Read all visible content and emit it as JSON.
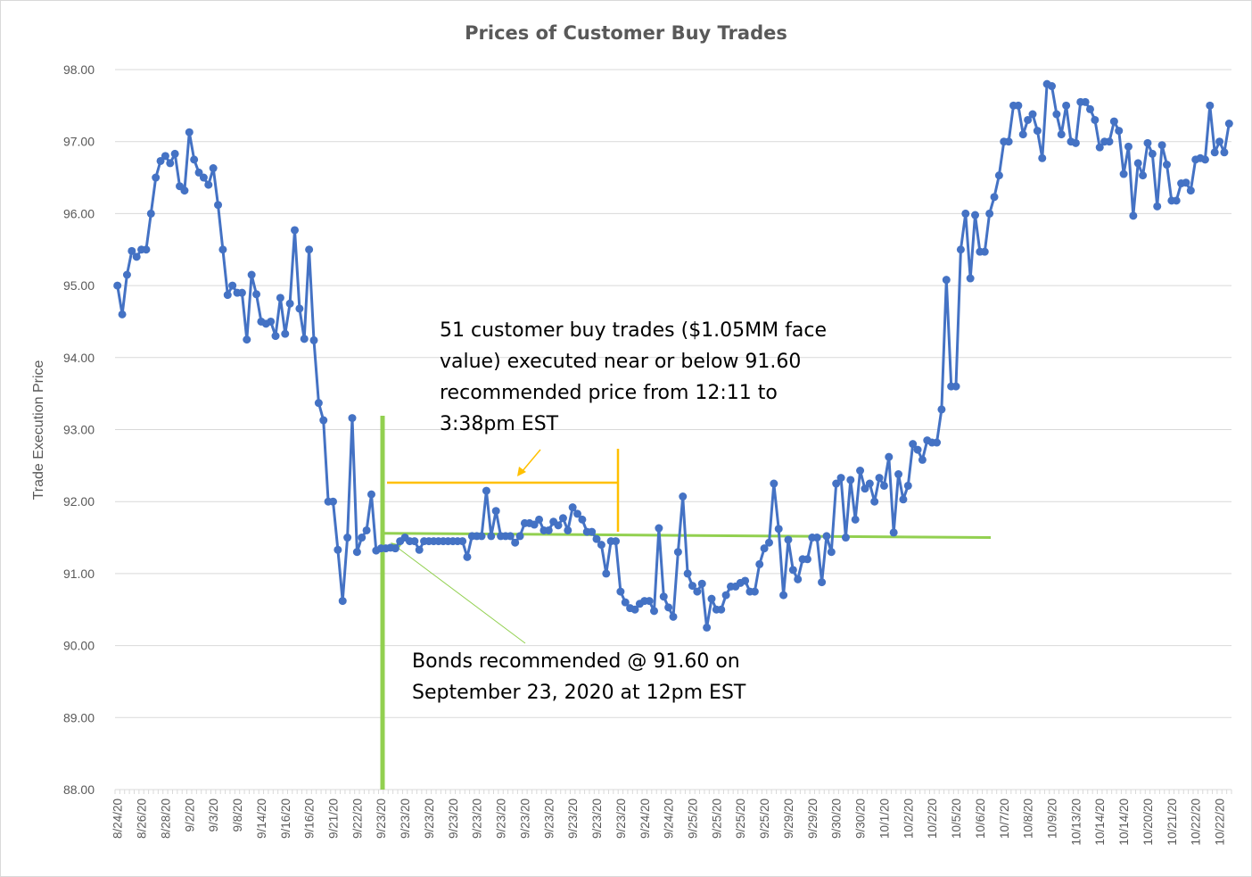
{
  "chart_data": {
    "type": "line",
    "title": "Prices of Customer Buy Trades",
    "xlabel": "",
    "ylabel": "Trade Execution Price",
    "ylim": [
      88,
      98
    ],
    "yticks": [
      "88.00",
      "89.00",
      "90.00",
      "91.00",
      "92.00",
      "93.00",
      "94.00",
      "95.00",
      "96.00",
      "97.00",
      "98.00"
    ],
    "grid": true,
    "legend": "none",
    "line_color": "#4472C4",
    "x_tick_every": 5,
    "x_tick_labels": [
      "8/24/20",
      "8/26/20",
      "8/28/20",
      "9/2/20",
      "9/3/20",
      "9/8/20",
      "9/14/20",
      "9/16/20",
      "9/16/20",
      "9/21/20",
      "9/22/20",
      "9/23/20",
      "9/23/20",
      "9/23/20",
      "9/23/20",
      "9/23/20",
      "9/23/20",
      "9/23/20",
      "9/23/20",
      "9/23/20",
      "9/23/20",
      "9/23/20",
      "9/24/20",
      "9/24/20",
      "9/25/20",
      "9/25/20",
      "9/25/20",
      "9/25/20",
      "9/29/20",
      "9/29/20",
      "9/30/20",
      "9/30/20",
      "10/1/20",
      "10/2/20",
      "10/2/20",
      "10/5/20",
      "10/6/20",
      "10/7/20",
      "10/8/20",
      "10/9/20",
      "10/13/20",
      "10/14/20",
      "10/14/20",
      "10/20/20",
      "10/21/20",
      "10/22/20",
      "10/22/20"
    ],
    "values": [
      95.0,
      94.6,
      95.15,
      95.48,
      95.4,
      95.5,
      95.5,
      96.0,
      96.5,
      96.73,
      96.8,
      96.7,
      96.83,
      96.38,
      96.32,
      97.13,
      96.75,
      96.57,
      96.5,
      96.4,
      96.63,
      96.12,
      95.5,
      94.87,
      95.0,
      94.9,
      94.9,
      94.25,
      95.15,
      94.88,
      94.5,
      94.47,
      94.5,
      94.3,
      94.83,
      94.33,
      94.75,
      95.77,
      94.68,
      94.26,
      95.5,
      94.24,
      93.37,
      93.13,
      92.0,
      92.0,
      91.33,
      90.62,
      91.5,
      93.16,
      91.3,
      91.5,
      91.6,
      92.1,
      91.32,
      91.35,
      91.35,
      91.36,
      91.35,
      91.45,
      91.5,
      91.45,
      91.45,
      91.33,
      91.45,
      91.45,
      91.45,
      91.45,
      91.45,
      91.45,
      91.45,
      91.45,
      91.45,
      91.23,
      91.52,
      91.52,
      91.52,
      92.15,
      91.52,
      91.87,
      91.52,
      91.52,
      91.52,
      91.43,
      91.52,
      91.7,
      91.7,
      91.68,
      91.75,
      91.6,
      91.6,
      91.72,
      91.67,
      91.77,
      91.6,
      91.92,
      91.83,
      91.75,
      91.58,
      91.58,
      91.48,
      91.4,
      91.0,
      91.45,
      91.45,
      90.75,
      90.6,
      90.52,
      90.5,
      90.58,
      90.62,
      90.62,
      90.48,
      91.63,
      90.68,
      90.53,
      90.4,
      91.3,
      92.07,
      91.0,
      90.83,
      90.75,
      90.86,
      90.25,
      90.65,
      90.5,
      90.5,
      90.7,
      90.82,
      90.82,
      90.87,
      90.9,
      90.75,
      90.75,
      91.13,
      91.35,
      91.43,
      92.25,
      91.62,
      90.7,
      91.47,
      91.05,
      90.92,
      91.2,
      91.2,
      91.5,
      91.5,
      90.88,
      91.52,
      91.3,
      92.25,
      92.33,
      91.5,
      92.3,
      91.75,
      92.43,
      92.18,
      92.25,
      92.0,
      92.33,
      92.22,
      92.62,
      91.57,
      92.38,
      92.03,
      92.22,
      92.8,
      92.72,
      92.58,
      92.85,
      92.82,
      92.82,
      93.28,
      95.08,
      93.6,
      93.6,
      95.5,
      96.0,
      95.1,
      95.98,
      95.47,
      95.47,
      96.0,
      96.23,
      96.53,
      97.0,
      97.0,
      97.5,
      97.5,
      97.1,
      97.3,
      97.38,
      97.15,
      96.77,
      97.8,
      97.77,
      97.38,
      97.1,
      97.5,
      97.0,
      96.98,
      97.55,
      97.55,
      97.45,
      97.3,
      96.92,
      97.0,
      97.0,
      97.28,
      97.15,
      96.55,
      96.93,
      95.97,
      96.7,
      96.53,
      96.98,
      96.83,
      96.1,
      96.95,
      96.68,
      96.18,
      96.18,
      96.42,
      96.43,
      96.32,
      96.75,
      96.77,
      96.75,
      97.5,
      96.85,
      97.0,
      96.85,
      97.25
    ],
    "annotations": {
      "trades_note": "51 customer buy trades ($1.05MM face value) executed near or below 91.60 recommended price from 12:11 to 3:38pm EST",
      "trades_note_lines": [
        "51 customer buy trades ($1.05MM face",
        "value) executed near or below 91.60",
        "recommended price from 12:11 to",
        "3:38pm EST"
      ],
      "recommendation_note_lines": [
        "Bonds recommended @ 91.60 on",
        "September 23, 2020 at 12pm EST"
      ],
      "recommended_price": 91.6,
      "green_color": "#92D050",
      "orange_color": "#FFC000"
    }
  }
}
